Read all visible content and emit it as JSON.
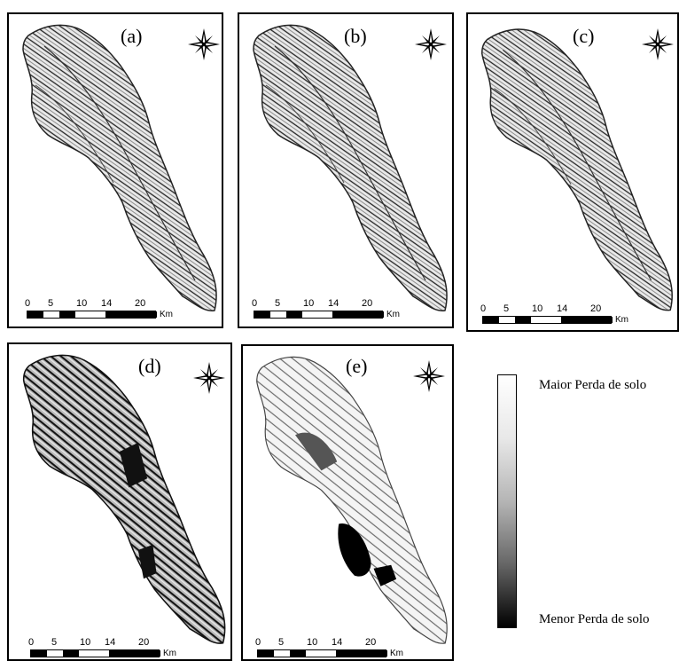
{
  "panels": [
    {
      "id": "a",
      "label": "(a)"
    },
    {
      "id": "b",
      "label": "(b)"
    },
    {
      "id": "c",
      "label": "(c)"
    },
    {
      "id": "d",
      "label": "(d)"
    },
    {
      "id": "e",
      "label": "(e)"
    }
  ],
  "scale": {
    "ticks": [
      "0",
      "5",
      "10",
      "14",
      "20"
    ],
    "unit": "Km"
  },
  "legend": {
    "top": "Maior Perda de solo",
    "bottom": "Menor Perda de solo"
  },
  "icons": {
    "north_arrow": "compass-rose-icon"
  },
  "colors": {
    "high": "#ffffff",
    "low": "#000000"
  }
}
